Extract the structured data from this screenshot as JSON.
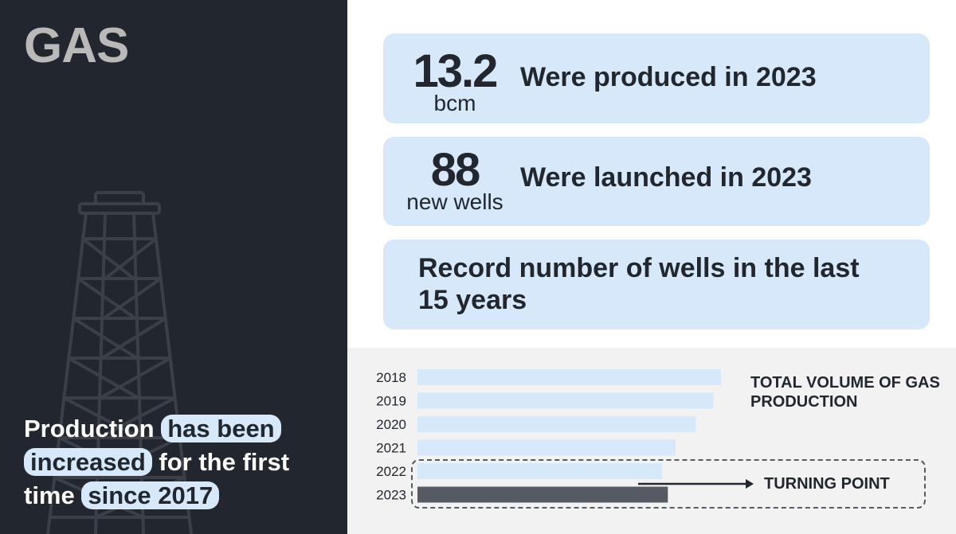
{
  "title": "GAS",
  "headline": {
    "part1": "Production",
    "part2": "has been",
    "part3": "increased",
    "part4": "for the",
    "part5": "first time",
    "part6": "since 2017"
  },
  "stats": [
    {
      "number": "13.2",
      "unit": "bcm",
      "description": "Were produced in 2023"
    },
    {
      "number": "88",
      "unit": "new wells",
      "description": "Were launched in 2023"
    },
    {
      "description": "Record number of wells in the last 15 years"
    }
  ],
  "chart_data": {
    "type": "bar",
    "orientation": "horizontal",
    "title": "TOTAL VOLUME OF GAS PRODUCTION",
    "categories": [
      "2018",
      "2019",
      "2020",
      "2021",
      "2022",
      "2023"
    ],
    "values": [
      100,
      97.5,
      91.7,
      85,
      80.6,
      82.5
    ],
    "annotation": "TURNING POINT",
    "colors": {
      "default": "#d6e8f9",
      "highlight": "#555a63"
    },
    "highlight_category": "2023"
  }
}
